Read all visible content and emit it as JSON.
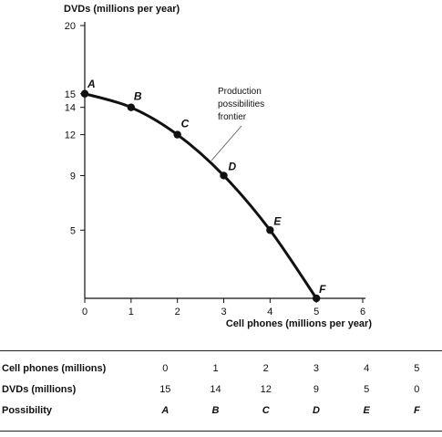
{
  "chart_data": {
    "type": "line",
    "ylabel": "DVDs (millions per year)",
    "xlabel": "Cell phones (millions per year)",
    "x_ticks": [
      0,
      1,
      2,
      3,
      4,
      5,
      6
    ],
    "y_ticks": [
      5,
      9,
      12,
      14,
      15,
      20
    ],
    "xlim": [
      0,
      6
    ],
    "ylim": [
      0,
      20
    ],
    "grid": false,
    "points": [
      {
        "label": "A",
        "x": 0,
        "y": 15
      },
      {
        "label": "B",
        "x": 1,
        "y": 14
      },
      {
        "label": "C",
        "x": 2,
        "y": 12
      },
      {
        "label": "D",
        "x": 3,
        "y": 9
      },
      {
        "label": "E",
        "x": 4,
        "y": 5
      },
      {
        "label": "F",
        "x": 5,
        "y": 0
      }
    ],
    "annotation": [
      "Production",
      "possibilities",
      "frontier"
    ]
  },
  "table": {
    "rows": [
      {
        "label": "Cell phones (millions)",
        "values": [
          "0",
          "1",
          "2",
          "3",
          "4",
          "5"
        ]
      },
      {
        "label": "DVDs (millions)",
        "values": [
          "15",
          "14",
          "12",
          "9",
          "5",
          "0"
        ]
      },
      {
        "label": "Possibility",
        "values": [
          "A",
          "B",
          "C",
          "D",
          "E",
          "F"
        ]
      }
    ]
  }
}
